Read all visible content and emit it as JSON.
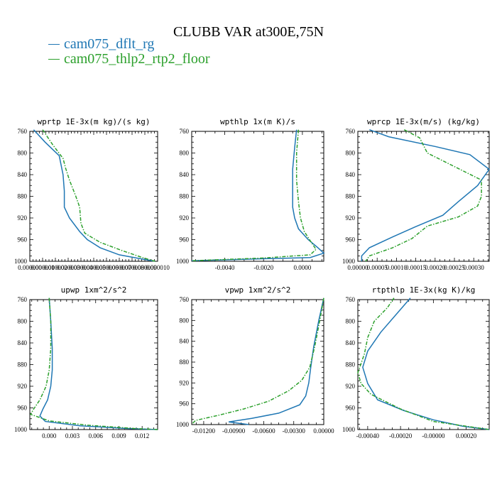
{
  "figure": {
    "title": "CLUBB VAR at300E,75N",
    "colors": {
      "cam075_dflt_rg": "#1f77b4",
      "cam075_thlp2_rtp2_floor": "#2ca02c"
    },
    "legend": [
      {
        "label": "cam075_dflt_rg",
        "color": "#1f77b4",
        "dash": "solid"
      },
      {
        "label": "cam075_thlp2_rtp2_floor",
        "color": "#2ca02c",
        "dash": "dashdot"
      }
    ]
  },
  "chart_data": [
    {
      "type": "line",
      "title": "wprtp  1E-3x(m kg)/(s kg)",
      "xlim": [
        0.0,
        1e-06
      ],
      "xticks": [
        0.0,
        1e-07,
        2e-07,
        3e-07,
        4e-07,
        5e-07,
        6e-07,
        7e-07,
        8e-07,
        9e-07,
        1e-06
      ],
      "xticklabels": [
        "0.000000",
        "0.000001",
        "0.000002",
        "0.000003",
        "0.000004",
        "0.000005",
        "0.000006",
        "0.000007",
        "0.000008",
        "0.000009",
        "0.000010"
      ],
      "ylim": [
        760,
        1000
      ],
      "yticks": [
        760,
        800,
        840,
        880,
        920,
        960,
        1000
      ],
      "series": [
        {
          "name": "cam075_dflt_rg",
          "color": "#1f77b4",
          "dash": "solid",
          "x": [
            3e-08,
            1.2e-07,
            2.3e-07,
            2.6e-07,
            2.7e-07,
            2.7e-07,
            3.1e-07,
            3.9e-07,
            4.5e-07,
            5.5e-07,
            7e-07,
            8.8e-07,
            9.8e-07
          ],
          "y": [
            757,
            780,
            805,
            840,
            870,
            900,
            920,
            945,
            960,
            975,
            988,
            996,
            1000
          ]
        },
        {
          "name": "cam075_thlp2_rtp2_floor",
          "color": "#2ca02c",
          "dash": "dashdot",
          "x": [
            1e-07,
            1.8e-07,
            2.6e-07,
            2.8e-07,
            3.1e-07,
            3.6e-07,
            3.9e-07,
            4e-07,
            4.3e-07,
            5.5e-07,
            7.2e-07,
            8.8e-07,
            9.8e-07
          ],
          "y": [
            757,
            785,
            810,
            828,
            850,
            880,
            900,
            930,
            948,
            965,
            980,
            993,
            1000
          ]
        }
      ]
    },
    {
      "type": "line",
      "title": "wpthlp  1x(m K)/s",
      "xlim": [
        -0.0057,
        0.0011
      ],
      "xticks": [
        -0.004,
        -0.002,
        0.0
      ],
      "xticklabels": [
        "-0.0040",
        "-0.0020",
        "0.0000"
      ],
      "ylim": [
        760,
        1000
      ],
      "yticks": [
        760,
        800,
        840,
        880,
        920,
        960,
        1000
      ],
      "series": [
        {
          "name": "cam075_dflt_rg",
          "color": "#1f77b4",
          "dash": "solid",
          "x": [
            -0.0003,
            -0.0004,
            -0.0005,
            -0.0005,
            -0.0005,
            -0.0004,
            -0.0002,
            0.0003,
            0.0008,
            0.0011,
            0.0004,
            -0.0057
          ],
          "y": [
            757,
            790,
            830,
            870,
            900,
            920,
            940,
            960,
            975,
            985,
            993,
            999
          ]
        },
        {
          "name": "cam075_thlp2_rtp2_floor",
          "color": "#2ca02c",
          "dash": "dashdot",
          "x": [
            -0.0002,
            -0.0003,
            -0.0003,
            -0.0002,
            -0.0001,
            0.0001,
            0.0004,
            0.0007,
            0.0004,
            -0.002,
            -0.0057
          ],
          "y": [
            757,
            800,
            850,
            890,
            920,
            945,
            962,
            978,
            988,
            994,
            999
          ]
        }
      ]
    },
    {
      "type": "line",
      "title": "wprcp  1E-3x(m/s) (kg/kg)",
      "xlim": [
        0.0,
        3.4e-05
      ],
      "xticks": [
        0.0,
        5e-06,
        1e-05,
        1.5e-05,
        2e-05,
        2.5e-05,
        3e-05
      ],
      "xticklabels": [
        "0.00000",
        "0.00005",
        "0.00010",
        "0.00015",
        "0.00020",
        "0.00025",
        "0.00030"
      ],
      "ylim": [
        760,
        1000
      ],
      "yticks": [
        760,
        800,
        840,
        880,
        920,
        960,
        1000
      ],
      "series": [
        {
          "name": "cam075_dflt_rg",
          "color": "#1f77b4",
          "dash": "solid",
          "x": [
            3e-06,
            8e-06,
            2e-05,
            2.9e-05,
            3.4e-05,
            3.1e-05,
            2.6e-05,
            2.2e-05,
            1.5e-05,
            9e-06,
            3e-06,
            1e-06,
            1e-06
          ],
          "y": [
            757,
            770,
            788,
            803,
            830,
            860,
            890,
            915,
            936,
            955,
            975,
            990,
            1000
          ]
        },
        {
          "name": "cam075_thlp2_rtp2_floor",
          "color": "#2ca02c",
          "dash": "dashdot",
          "x": [
            1.2e-05,
            1.6e-05,
            1.8e-05,
            2.5e-05,
            3.2e-05,
            3.2e-05,
            3.1e-05,
            2.6e-05,
            1.8e-05,
            1.4e-05,
            9e-06,
            3e-06,
            2e-06
          ],
          "y": [
            757,
            772,
            800,
            825,
            850,
            880,
            898,
            918,
            935,
            958,
            975,
            990,
            1000
          ]
        }
      ]
    },
    {
      "type": "line",
      "title": "upwp  1xm^2/s^2",
      "xlim": [
        -0.0025,
        0.014
      ],
      "xticks": [
        0.0,
        0.003,
        0.006,
        0.009,
        0.012
      ],
      "xticklabels": [
        "0.000",
        "0.003",
        "0.006",
        "0.009",
        "0.012"
      ],
      "ylim": [
        760,
        1000
      ],
      "yticks": [
        760,
        800,
        840,
        880,
        920,
        960,
        1000
      ],
      "series": [
        {
          "name": "cam075_dflt_rg",
          "color": "#1f77b4",
          "dash": "solid",
          "x": [
            0.0,
            0.0002,
            0.0004,
            0.0004,
            0.0002,
            -0.0002,
            -0.0008,
            -0.0012,
            -0.0005,
            0.004,
            0.01,
            0.014
          ],
          "y": [
            757,
            800,
            850,
            890,
            920,
            945,
            962,
            975,
            985,
            993,
            998,
            1000
          ]
        },
        {
          "name": "cam075_thlp2_rtp2_floor",
          "color": "#2ca02c",
          "dash": "dashdot",
          "x": [
            0.0,
            0.0002,
            0.0002,
            0.0,
            -0.0004,
            -0.0012,
            -0.002,
            -0.0024,
            0.0,
            0.005,
            0.011,
            0.014
          ],
          "y": [
            757,
            800,
            850,
            890,
            920,
            945,
            962,
            972,
            984,
            992,
            998,
            1000
          ]
        }
      ]
    },
    {
      "type": "line",
      "title": "vpwp  1xm^2/s^2",
      "xlim": [
        -0.0132,
        0.0
      ],
      "xticks": [
        -0.012,
        -0.009,
        -0.006,
        -0.003,
        0.0
      ],
      "xticklabels": [
        "-0.01200",
        "-0.00900",
        "-0.00600",
        "-0.00300",
        "0.00000"
      ],
      "ylim": [
        760,
        1000
      ],
      "yticks": [
        760,
        800,
        840,
        880,
        920,
        960,
        1000
      ],
      "series": [
        {
          "name": "cam075_dflt_rg",
          "color": "#1f77b4",
          "dash": "solid",
          "x": [
            0.0,
            -0.0005,
            -0.001,
            -0.0013,
            -0.0015,
            -0.0018,
            -0.0024,
            -0.0045,
            -0.0072,
            -0.0095,
            -0.0075
          ],
          "y": [
            757,
            800,
            850,
            890,
            920,
            945,
            962,
            978,
            988,
            995,
            1000
          ]
        },
        {
          "name": "cam075_thlp2_rtp2_floor",
          "color": "#2ca02c",
          "dash": "dashdot",
          "x": [
            0.0,
            -0.0004,
            -0.0009,
            -0.0014,
            -0.0022,
            -0.0035,
            -0.0055,
            -0.008,
            -0.0105,
            -0.0128,
            -0.0132
          ],
          "y": [
            757,
            800,
            850,
            890,
            915,
            935,
            955,
            970,
            982,
            992,
            999
          ]
        }
      ]
    },
    {
      "type": "line",
      "title": "rtpthlp  1E-3x(kg K)/kg",
      "xlim": [
        -0.00046,
        0.00034
      ],
      "xticks": [
        -0.0004,
        -0.0002,
        0.0,
        0.0002
      ],
      "xticklabels": [
        "-0.00040",
        "-0.00020",
        "-0.00000",
        "0.00020"
      ],
      "ylim": [
        760,
        1000
      ],
      "yticks": [
        760,
        800,
        840,
        880,
        920,
        960,
        1000
      ],
      "series": [
        {
          "name": "cam075_dflt_rg",
          "color": "#1f77b4",
          "dash": "solid",
          "x": [
            -0.00014,
            -0.00022,
            -0.00032,
            -0.0004,
            -0.00043,
            -0.0004,
            -0.00034,
            -0.00018,
            0.0,
            0.00018,
            0.00034
          ],
          "y": [
            757,
            785,
            820,
            855,
            885,
            915,
            945,
            965,
            982,
            994,
            1000
          ]
        },
        {
          "name": "cam075_thlp2_rtp2_floor",
          "color": "#2ca02c",
          "dash": "dashdot",
          "x": [
            -0.00024,
            -0.00028,
            -0.00036,
            -0.0004,
            -0.00042,
            -0.00046,
            -0.00044,
            -0.00038,
            -0.0002,
            0.0,
            0.00034
          ],
          "y": [
            757,
            775,
            800,
            830,
            860,
            895,
            915,
            935,
            962,
            985,
            1000
          ]
        }
      ]
    }
  ]
}
